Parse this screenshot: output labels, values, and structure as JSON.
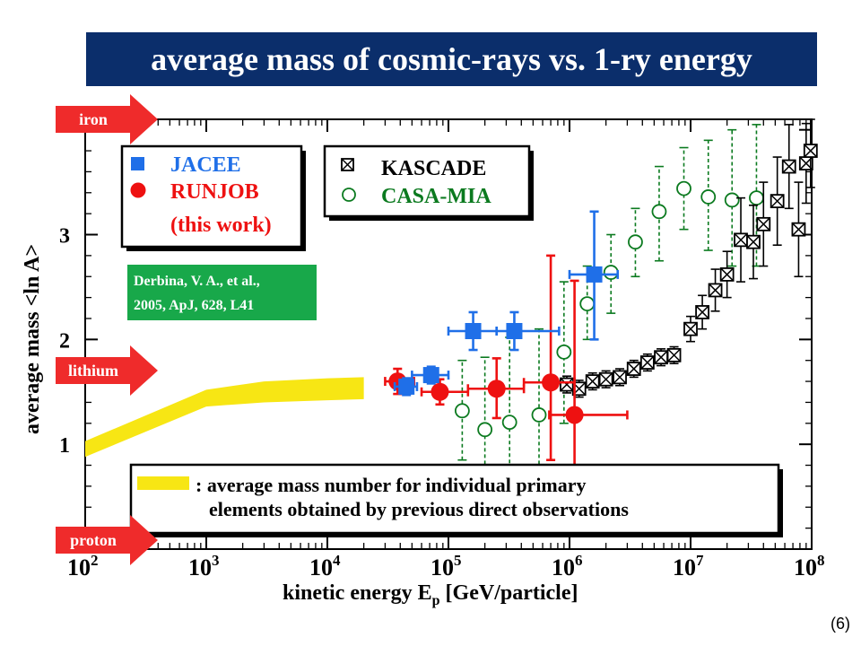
{
  "slide": {
    "title": "average mass of cosmic-rays vs. 1-ry energy",
    "page_number": "(6)",
    "citation_line1": "Derbina, V. A., et al.,",
    "citation_line2": "2005, ApJ, 628, L41",
    "arrows": {
      "iron": "iron",
      "lithium": "lithium",
      "proton": "proton"
    },
    "footer_legend_line1": ": average mass number for individual primary",
    "footer_legend_line2": "elements obtained by previous direct observations"
  },
  "chart_data": {
    "type": "scatter",
    "xlabel": "kinetic energy E",
    "xlabel_sub": "p",
    "xlabel_unit": " [GeV/particle]",
    "ylabel": "average mass <ln A>",
    "xscale": "log",
    "xlim": [
      100,
      100000000
    ],
    "ylim": [
      0,
      4.1
    ],
    "x_ticks": [
      {
        "base": "10",
        "exp": "2",
        "value": 100
      },
      {
        "base": "10",
        "exp": "3",
        "value": 1000
      },
      {
        "base": "10",
        "exp": "4",
        "value": 10000
      },
      {
        "base": "10",
        "exp": "5",
        "value": 100000
      },
      {
        "base": "10",
        "exp": "6",
        "value": 1000000
      },
      {
        "base": "10",
        "exp": "7",
        "value": 10000000
      },
      {
        "base": "10",
        "exp": "8",
        "value": 100000000
      }
    ],
    "y_ticks": [
      {
        "label": "1",
        "value": 1
      },
      {
        "label": "2",
        "value": 2
      },
      {
        "label": "3",
        "value": 3
      }
    ],
    "legend_left": [
      {
        "name": "JACEE",
        "color": "#1f6fe8",
        "marker": "square"
      },
      {
        "name": "RUNJOB",
        "color": "#ee1111",
        "marker": "circle"
      },
      {
        "name": "(this work)",
        "color": "#ee1111",
        "marker": "none"
      }
    ],
    "legend_right": [
      {
        "name": "KASCADE",
        "color": "#000000",
        "marker": "boxed-x"
      },
      {
        "name": "CASA-MIA",
        "color": "#0b7a1f",
        "marker": "open-circle"
      }
    ],
    "direct_band": {
      "color": "#f7e614",
      "x": [
        100,
        1000,
        3000,
        10000,
        20000
      ],
      "y_low": [
        0.88,
        1.36,
        1.4,
        1.42,
        1.43
      ],
      "y_high": [
        1.03,
        1.52,
        1.6,
        1.63,
        1.64
      ]
    },
    "series": [
      {
        "name": "JACEE",
        "color": "#1f6fe8",
        "marker": "square",
        "points": [
          {
            "x": 45000,
            "y": 1.55,
            "xlo": 36000,
            "xhi": 55000,
            "ylo": 1.47,
            "yhi": 1.63
          },
          {
            "x": 72000,
            "y": 1.66,
            "xlo": 50000,
            "xhi": 100000,
            "ylo": 1.58,
            "yhi": 1.74
          },
          {
            "x": 160000,
            "y": 2.08,
            "xlo": 100000,
            "xhi": 250000,
            "ylo": 1.9,
            "yhi": 2.26
          },
          {
            "x": 350000,
            "y": 2.08,
            "xlo": 250000,
            "xhi": 820000,
            "ylo": 1.9,
            "yhi": 2.26
          },
          {
            "x": 1600000,
            "y": 2.62,
            "xlo": 1000000,
            "xhi": 2500000,
            "ylo": 2.0,
            "yhi": 3.22
          }
        ]
      },
      {
        "name": "RUNJOB",
        "color": "#ee1111",
        "marker": "circle",
        "points": [
          {
            "x": 38000,
            "y": 1.6,
            "xlo": 30000,
            "xhi": 52000,
            "ylo": 1.48,
            "yhi": 1.72
          },
          {
            "x": 85000,
            "y": 1.5,
            "xlo": 60000,
            "xhi": 145000,
            "ylo": 1.38,
            "yhi": 1.62
          },
          {
            "x": 250000,
            "y": 1.53,
            "xlo": 145000,
            "xhi": 420000,
            "ylo": 1.25,
            "yhi": 1.82
          },
          {
            "x": 700000,
            "y": 1.59,
            "xlo": 420000,
            "xhi": 1100000,
            "ylo": 0.85,
            "yhi": 2.8
          },
          {
            "x": 1100000,
            "y": 1.28,
            "xlo": 680000,
            "xhi": 3000000,
            "ylo": 0.5,
            "yhi": 2.56
          }
        ]
      },
      {
        "name": "KASCADE",
        "color": "#000000",
        "marker": "boxed-x",
        "points": [
          {
            "x": 950000,
            "y": 1.57,
            "ylo": 1.49,
            "yhi": 1.65
          },
          {
            "x": 1200000,
            "y": 1.53,
            "ylo": 1.45,
            "yhi": 1.61
          },
          {
            "x": 1550000,
            "y": 1.6,
            "ylo": 1.52,
            "yhi": 1.68
          },
          {
            "x": 2000000,
            "y": 1.62,
            "ylo": 1.54,
            "yhi": 1.7
          },
          {
            "x": 2600000,
            "y": 1.64,
            "ylo": 1.56,
            "yhi": 1.72
          },
          {
            "x": 3400000,
            "y": 1.72,
            "ylo": 1.64,
            "yhi": 1.8
          },
          {
            "x": 4400000,
            "y": 1.78,
            "ylo": 1.7,
            "yhi": 1.86
          },
          {
            "x": 5700000,
            "y": 1.83,
            "ylo": 1.75,
            "yhi": 1.91
          },
          {
            "x": 7300000,
            "y": 1.85,
            "ylo": 1.77,
            "yhi": 1.93
          },
          {
            "x": 10000000,
            "y": 2.1,
            "ylo": 1.98,
            "yhi": 2.22
          },
          {
            "x": 12500000,
            "y": 2.26,
            "ylo": 2.1,
            "yhi": 2.42
          },
          {
            "x": 16000000,
            "y": 2.47,
            "ylo": 2.27,
            "yhi": 2.67
          },
          {
            "x": 20000000,
            "y": 2.62,
            "ylo": 2.4,
            "yhi": 2.84
          },
          {
            "x": 26000000,
            "y": 2.95,
            "ylo": 2.55,
            "yhi": 3.35
          },
          {
            "x": 33000000,
            "y": 2.93,
            "ylo": 2.58,
            "yhi": 3.28
          },
          {
            "x": 40000000,
            "y": 3.1,
            "ylo": 2.7,
            "yhi": 3.5
          },
          {
            "x": 52000000,
            "y": 3.32,
            "ylo": 2.9,
            "yhi": 3.74
          },
          {
            "x": 65000000,
            "y": 3.65,
            "ylo": 3.25,
            "yhi": 4.05
          },
          {
            "x": 78000000,
            "y": 3.05,
            "ylo": 2.6,
            "yhi": 3.5
          },
          {
            "x": 90000000,
            "y": 3.68,
            "ylo": 3.3,
            "yhi": 4.06
          },
          {
            "x": 98000000,
            "y": 3.8,
            "ylo": 3.45,
            "yhi": 4.1
          }
        ]
      },
      {
        "name": "CASA-MIA",
        "color": "#0b7a1f",
        "marker": "open-circle",
        "points": [
          {
            "x": 130000,
            "y": 1.32,
            "ylo": 0.85,
            "yhi": 1.8
          },
          {
            "x": 200000,
            "y": 1.14,
            "ylo": 0.45,
            "yhi": 1.83
          },
          {
            "x": 320000,
            "y": 1.21,
            "ylo": 0.4,
            "yhi": 2.02
          },
          {
            "x": 560000,
            "y": 1.28,
            "ylo": 0.45,
            "yhi": 2.1
          },
          {
            "x": 900000,
            "y": 1.88,
            "ylo": 1.2,
            "yhi": 2.55
          },
          {
            "x": 1400000,
            "y": 2.34,
            "ylo": 2.0,
            "yhi": 2.7
          },
          {
            "x": 2200000,
            "y": 2.64,
            "ylo": 2.25,
            "yhi": 3.0
          },
          {
            "x": 3500000,
            "y": 2.93,
            "ylo": 2.6,
            "yhi": 3.25
          },
          {
            "x": 5500000,
            "y": 3.22,
            "ylo": 2.75,
            "yhi": 3.65
          },
          {
            "x": 8800000,
            "y": 3.44,
            "ylo": 3.05,
            "yhi": 3.83
          },
          {
            "x": 14000000,
            "y": 3.36,
            "ylo": 2.85,
            "yhi": 3.9
          },
          {
            "x": 22000000,
            "y": 3.33,
            "ylo": 2.7,
            "yhi": 4.0
          },
          {
            "x": 35000000,
            "y": 3.35,
            "ylo": 2.7,
            "yhi": 4.05
          }
        ]
      }
    ]
  }
}
